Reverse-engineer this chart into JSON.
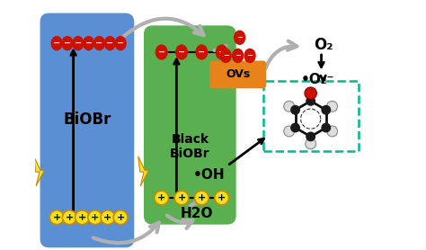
{
  "biobr_color": "#5b8fd4",
  "black_biobr_color": "#5ab050",
  "biobr_label": "BiOBr",
  "black_biobr_label": "Black\nBiOBr",
  "ovs_color": "#e8821a",
  "ovs_label": "OVs",
  "o2_label": "O₂",
  "o2_radical_label": "•O₂⁻",
  "oh_label": "•OH",
  "h2o_label": "H2O",
  "electron_color": "#cc1100",
  "hole_color": "#f0e020",
  "hole_ec": "#cc8800",
  "bg_color": "#ffffff",
  "molecule_box_color": "#00bb88",
  "arrow_gray": "#b0b0b0",
  "arrow_white": "#f0f0f0",
  "lightning_color": "#f5e030",
  "lightning_ec": "#cc8800",
  "n_elec_blue": 7,
  "n_elec_green": 4,
  "n_holes_blue": 6,
  "n_holes_green": 4,
  "n_elec_ovs": 3
}
